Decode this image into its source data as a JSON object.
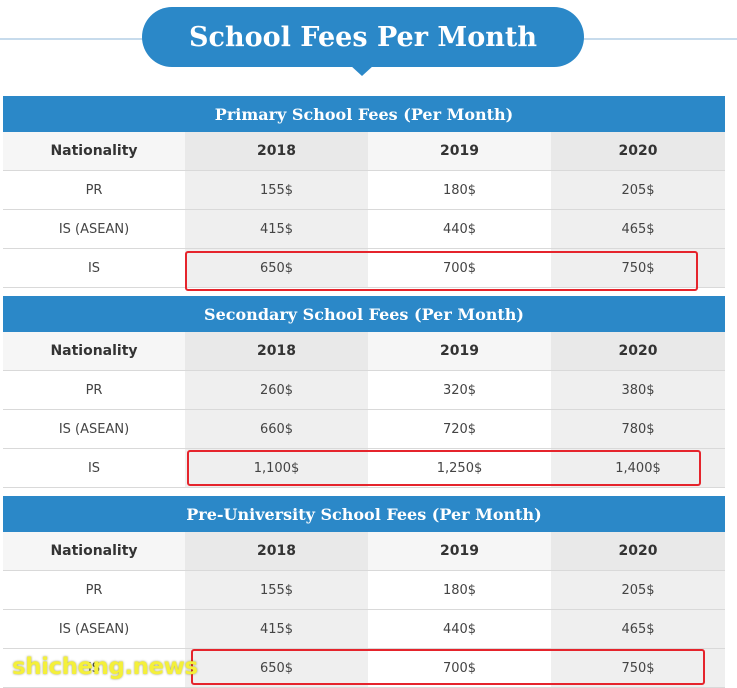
{
  "title": "School Fees Per Month",
  "columns": [
    "Nationality",
    "2018",
    "2019",
    "2020"
  ],
  "sections": [
    {
      "header": "Primary School Fees (Per Month)",
      "rows": [
        {
          "label": "PR",
          "values": [
            "155$",
            "180$",
            "205$"
          ]
        },
        {
          "label": "IS (ASEAN)",
          "values": [
            "415$",
            "440$",
            "465$"
          ]
        },
        {
          "label": "IS",
          "values": [
            "650$",
            "700$",
            "750$"
          ],
          "highlighted": true
        }
      ]
    },
    {
      "header": "Secondary School Fees (Per Month)",
      "rows": [
        {
          "label": "PR",
          "values": [
            "260$",
            "320$",
            "380$"
          ]
        },
        {
          "label": "IS (ASEAN)",
          "values": [
            "660$",
            "720$",
            "780$"
          ]
        },
        {
          "label": "IS",
          "values": [
            "1,100$",
            "1,250$",
            "1,400$"
          ],
          "highlighted": true
        }
      ]
    },
    {
      "header": "Pre-University School Fees (Per Month)",
      "rows": [
        {
          "label": "PR",
          "values": [
            "155$",
            "180$",
            "205$"
          ]
        },
        {
          "label": "IS (ASEAN)",
          "values": [
            "415$",
            "440$",
            "465$"
          ]
        },
        {
          "label": "IS",
          "values": [
            "650$",
            "700$",
            "750$"
          ],
          "highlighted": true
        }
      ]
    }
  ],
  "watermark": "shicheng.news",
  "colors": {
    "header_blue": "#2b88c8",
    "highlight_red": "#e5242c"
  }
}
